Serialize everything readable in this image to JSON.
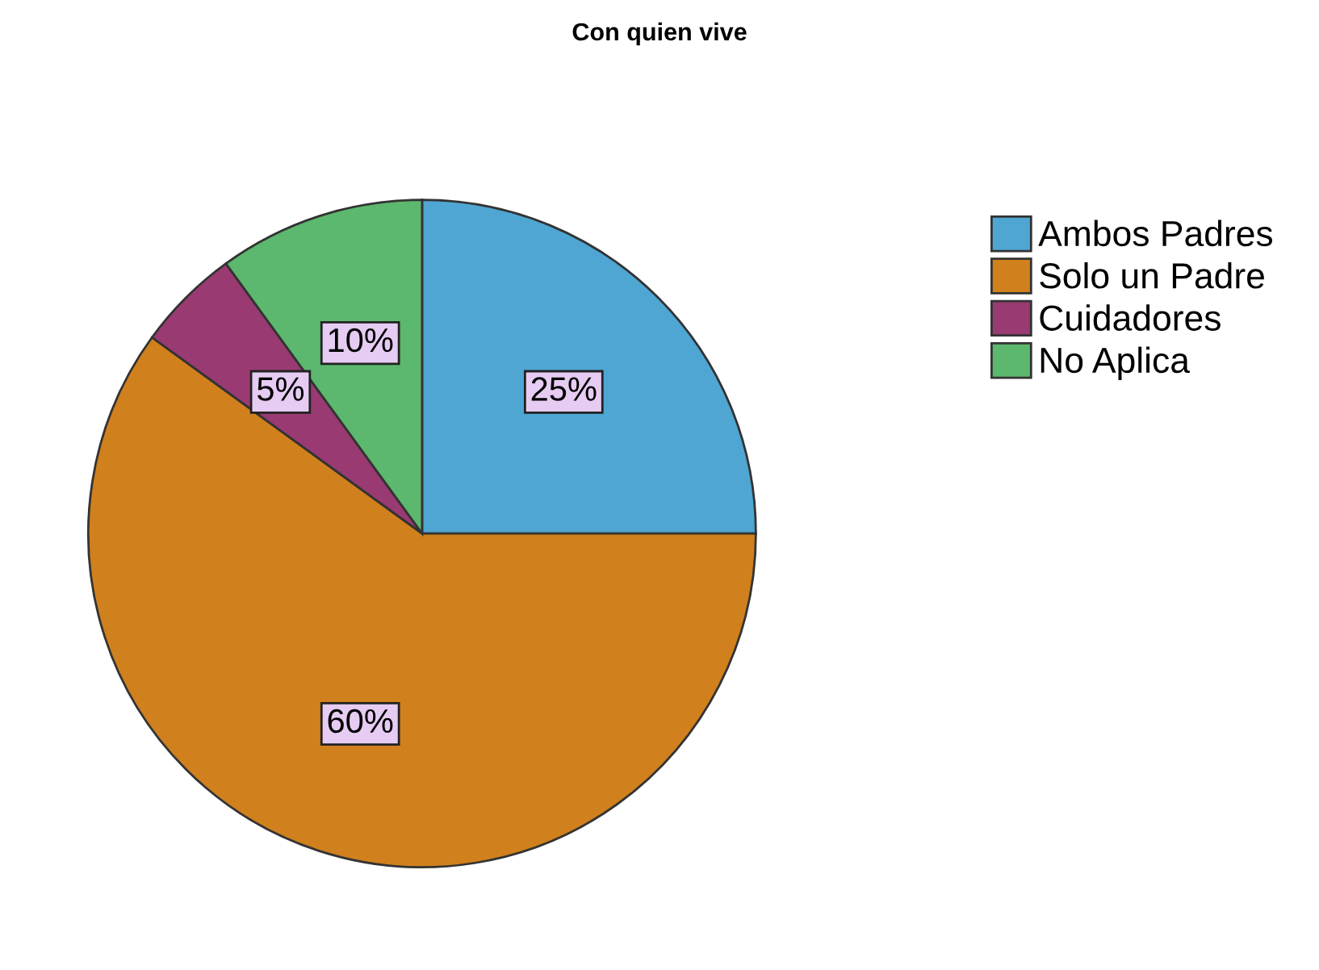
{
  "chart_data": {
    "type": "pie",
    "title": "Con quien vive",
    "categories": [
      "Ambos Padres",
      "Solo un Padre",
      "Cuidadores",
      "No Aplica"
    ],
    "values": [
      25,
      60,
      5,
      10
    ],
    "colors": [
      "#4fa6d2",
      "#d0801c",
      "#993a72",
      "#5cb86e"
    ],
    "value_labels": [
      "25%",
      "60%",
      "5%",
      "10%"
    ],
    "legend": "top right"
  }
}
